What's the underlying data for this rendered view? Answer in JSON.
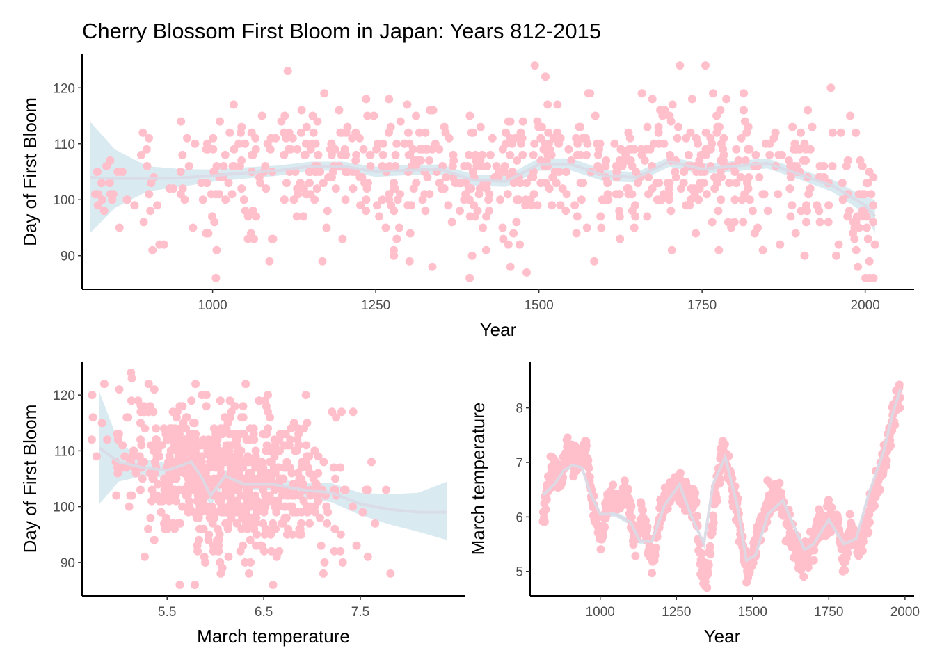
{
  "title": "Cherry Blossom First Bloom in Japan: Years 812-2015",
  "colors": {
    "point": "#FFC0CB",
    "band": "#D2E6EF",
    "trend": "#D9DAE6",
    "axis": "#000000",
    "tick_text": "#4D4D4D"
  },
  "chart_data": [
    {
      "panel": "top",
      "type": "scatter",
      "xlabel": "Year",
      "ylabel": "Day of First Bloom",
      "xlim": [
        800,
        2075
      ],
      "ylim": [
        84,
        126
      ],
      "xticks": [
        1000,
        1250,
        1500,
        1750,
        2000
      ],
      "yticks": [
        90,
        100,
        110,
        120
      ],
      "smooth": {
        "x": [
          812,
          850,
          900,
          950,
          1000,
          1050,
          1100,
          1150,
          1200,
          1250,
          1300,
          1350,
          1400,
          1450,
          1500,
          1550,
          1600,
          1650,
          1700,
          1750,
          1800,
          1850,
          1900,
          1950,
          2000,
          2015
        ],
        "y": [
          104,
          103.8,
          103.8,
          103.9,
          104.3,
          104.8,
          105.2,
          106,
          106,
          105,
          105.3,
          105.4,
          103.5,
          103.3,
          106.3,
          106.3,
          104.3,
          104,
          106.8,
          105.5,
          106,
          106.5,
          104.5,
          102.5,
          99,
          97
        ],
        "lower": [
          94,
          98.5,
          101.5,
          102.3,
          103.2,
          103.8,
          104.3,
          105.2,
          105.2,
          104.1,
          104.4,
          104.5,
          102.5,
          102.3,
          105.2,
          105.2,
          103.3,
          103.1,
          105.9,
          104.6,
          105.1,
          105.6,
          103.6,
          101.4,
          97.5,
          94
        ],
        "upper": [
          114,
          109,
          106,
          105.5,
          105.4,
          105.8,
          106.1,
          106.8,
          106.8,
          105.9,
          106.2,
          106.3,
          104.5,
          104.3,
          107.4,
          107.4,
          105.3,
          104.9,
          107.7,
          106.4,
          106.9,
          107.4,
          105.4,
          103.6,
          100.5,
          100
        ]
      }
    },
    {
      "panel": "bottom-left",
      "type": "scatter",
      "xlabel": "March temperature",
      "ylabel": "Day of First Bloom",
      "xlim": [
        4.62,
        8.58
      ],
      "ylim": [
        84,
        126
      ],
      "xticks": [
        5.5,
        6.5,
        7.5
      ],
      "yticks": [
        90,
        100,
        110,
        120
      ],
      "smooth": {
        "x": [
          4.8,
          5.0,
          5.25,
          5.5,
          5.75,
          5.85,
          5.95,
          6.1,
          6.3,
          6.6,
          6.9,
          7.2,
          7.5,
          7.8,
          8.1,
          8.4
        ],
        "y": [
          110.5,
          108,
          107,
          106.5,
          108,
          105.5,
          102,
          105.5,
          104,
          104,
          103,
          102.5,
          100.5,
          99.5,
          99,
          99
        ],
        "lower": [
          100.5,
          104.5,
          105.5,
          105.2,
          106.3,
          103.5,
          100,
          104.4,
          103.1,
          103,
          101.7,
          100.8,
          98.5,
          96.8,
          95.5,
          94
        ],
        "upper": [
          120.5,
          111.5,
          108.5,
          107.8,
          109.7,
          107.5,
          104,
          106.6,
          104.9,
          105,
          104.3,
          104.2,
          102.5,
          102.2,
          102.5,
          104.5
        ]
      }
    },
    {
      "panel": "bottom-right",
      "type": "scatter",
      "xlabel": "Year",
      "ylabel": "March temperature",
      "xlim": [
        770,
        2030
      ],
      "ylim": [
        4.55,
        8.85
      ],
      "xticks": [
        1000,
        1250,
        1500,
        1750,
        2000
      ],
      "yticks": [
        5,
        6,
        7,
        8
      ],
      "smooth": {
        "x": [
          812,
          850,
          880,
          910,
          940,
          970,
          1000,
          1050,
          1100,
          1130,
          1170,
          1210,
          1260,
          1300,
          1340,
          1370,
          1410,
          1450,
          1480,
          1510,
          1550,
          1600,
          1630,
          1670,
          1700,
          1750,
          1800,
          1840,
          1880,
          1930,
          1960,
          1985
        ],
        "y": [
          6.4,
          6.6,
          6.85,
          6.95,
          6.9,
          6.4,
          6.05,
          6.05,
          5.9,
          5.55,
          5.55,
          6.2,
          6.6,
          6.0,
          5.5,
          6.6,
          7.1,
          6.2,
          5.2,
          5.3,
          6.05,
          6.3,
          5.9,
          5.4,
          5.5,
          5.95,
          5.5,
          5.6,
          6.4,
          7.2,
          7.9,
          8.35
        ],
        "band": 0.05
      },
      "curve_knots": {
        "x": [
          812,
          840,
          870,
          900,
          920,
          950,
          975,
          1000,
          1030,
          1060,
          1090,
          1110,
          1140,
          1170,
          1200,
          1230,
          1260,
          1280,
          1310,
          1330,
          1350,
          1380,
          1400,
          1420,
          1450,
          1480,
          1500,
          1520,
          1550,
          1580,
          1600,
          1630,
          1660,
          1690,
          1720,
          1750,
          1780,
          1800,
          1820,
          1850,
          1880,
          1910,
          1940,
          1960,
          1975,
          1985
        ],
        "y": [
          6.0,
          6.9,
          6.8,
          7.3,
          6.9,
          7.3,
          6.3,
          5.6,
          6.4,
          6.2,
          6.5,
          5.5,
          6.0,
          5.2,
          6.1,
          6.5,
          6.6,
          6.4,
          6.3,
          5.1,
          4.9,
          6.5,
          7.2,
          6.9,
          6.1,
          5.0,
          5.2,
          5.8,
          6.2,
          6.4,
          6.2,
          5.6,
          5.2,
          5.4,
          5.8,
          6.0,
          5.8,
          5.0,
          5.8,
          5.4,
          6.0,
          6.7,
          7.2,
          7.8,
          8.1,
          8.3
        ]
      }
    }
  ]
}
